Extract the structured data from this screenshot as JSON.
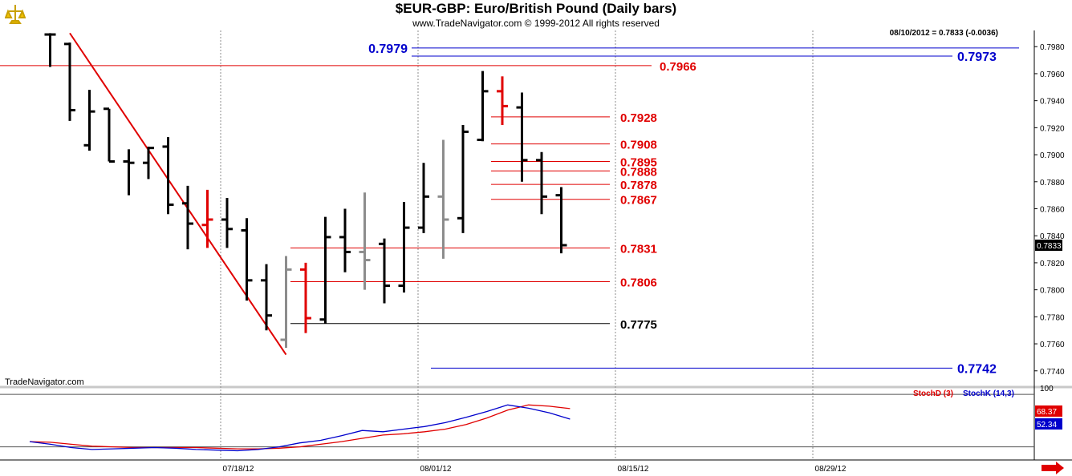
{
  "header": {
    "title": "$EUR-GBP:  Euro/British Pound  (Daily bars)",
    "subtitle": "www.TradeNavigator.com © 1999-2012 All rights reserved",
    "last_info": "08/10/2012 = 0.7833 (-0.0036)",
    "brand": "TradeNavigator.com"
  },
  "colors": {
    "bar_black": "#000000",
    "bar_red": "#e00000",
    "bar_gray": "#8c8c8c",
    "level_red": "#e00000",
    "level_blue": "#0000cc",
    "stoch_d": "#e00000",
    "stoch_k": "#0000cc",
    "grid": "#8c8c8c"
  },
  "chart_data": [
    {
      "type": "ohlc",
      "title": "$EUR-GBP:  Euro/British Pound  (Daily bars)",
      "ylim": [
        0.7728,
        0.7992
      ],
      "y_ticks": [
        "0.7740",
        "0.7760",
        "0.7780",
        "0.7800",
        "0.7820",
        "0.7840",
        "0.7860",
        "0.7880",
        "0.7900",
        "0.7920",
        "0.7940",
        "0.7960",
        "0.7980"
      ],
      "x_ticks": [
        "07/18/12",
        "08/01/12",
        "08/15/12",
        "08/29/12"
      ],
      "last_price": "0.7833",
      "bars": [
        {
          "o": 0.7989,
          "h": 0.799,
          "l": 0.7965,
          "c": 0.7989,
          "color": "black"
        },
        {
          "o": 0.7982,
          "h": 0.7983,
          "l": 0.7925,
          "c": 0.7933,
          "color": "black"
        },
        {
          "o": 0.7907,
          "h": 0.7948,
          "l": 0.7903,
          "c": 0.7932,
          "color": "black"
        },
        {
          "o": 0.7934,
          "h": 0.7934,
          "l": 0.7895,
          "c": 0.7895,
          "color": "black"
        },
        {
          "o": 0.7895,
          "h": 0.7904,
          "l": 0.787,
          "c": 0.7894,
          "color": "black"
        },
        {
          "o": 0.7894,
          "h": 0.7906,
          "l": 0.7882,
          "c": 0.7905,
          "color": "black"
        },
        {
          "o": 0.7906,
          "h": 0.7913,
          "l": 0.7856,
          "c": 0.7863,
          "color": "black"
        },
        {
          "o": 0.7864,
          "h": 0.7877,
          "l": 0.783,
          "c": 0.7849,
          "color": "black"
        },
        {
          "o": 0.7848,
          "h": 0.7874,
          "l": 0.7831,
          "c": 0.7852,
          "color": "red"
        },
        {
          "o": 0.7852,
          "h": 0.7868,
          "l": 0.7831,
          "c": 0.7845,
          "color": "black"
        },
        {
          "o": 0.7844,
          "h": 0.7853,
          "l": 0.7792,
          "c": 0.7807,
          "color": "black"
        },
        {
          "o": 0.7807,
          "h": 0.7819,
          "l": 0.777,
          "c": 0.7781,
          "color": "black"
        },
        {
          "o": 0.7763,
          "h": 0.7825,
          "l": 0.7757,
          "c": 0.7815,
          "color": "gray"
        },
        {
          "o": 0.7815,
          "h": 0.782,
          "l": 0.7768,
          "c": 0.7779,
          "color": "red"
        },
        {
          "o": 0.7778,
          "h": 0.7854,
          "l": 0.7775,
          "c": 0.7839,
          "color": "black"
        },
        {
          "o": 0.7839,
          "h": 0.786,
          "l": 0.7813,
          "c": 0.7828,
          "color": "black"
        },
        {
          "o": 0.7828,
          "h": 0.7872,
          "l": 0.78,
          "c": 0.7822,
          "color": "gray"
        },
        {
          "o": 0.7834,
          "h": 0.7838,
          "l": 0.779,
          "c": 0.7803,
          "color": "black"
        },
        {
          "o": 0.7803,
          "h": 0.7865,
          "l": 0.7798,
          "c": 0.7846,
          "color": "black"
        },
        {
          "o": 0.7846,
          "h": 0.7894,
          "l": 0.7842,
          "c": 0.7869,
          "color": "black"
        },
        {
          "o": 0.7869,
          "h": 0.7911,
          "l": 0.7823,
          "c": 0.7852,
          "color": "gray"
        },
        {
          "o": 0.7853,
          "h": 0.7922,
          "l": 0.7842,
          "c": 0.7917,
          "color": "black"
        },
        {
          "o": 0.7911,
          "h": 0.7962,
          "l": 0.791,
          "c": 0.7947,
          "color": "black"
        },
        {
          "o": 0.7947,
          "h": 0.7958,
          "l": 0.7922,
          "c": 0.7936,
          "color": "red"
        },
        {
          "o": 0.7935,
          "h": 0.7946,
          "l": 0.788,
          "c": 0.7896,
          "color": "black"
        },
        {
          "o": 0.7896,
          "h": 0.7902,
          "l": 0.7856,
          "c": 0.7869,
          "color": "black"
        },
        {
          "o": 0.787,
          "h": 0.7876,
          "l": 0.7827,
          "c": 0.7833,
          "color": "black"
        }
      ],
      "levels": [
        {
          "value": 0.7979,
          "label": "0.7979",
          "color": "blue",
          "side": "left"
        },
        {
          "value": 0.7973,
          "label": "0.7973",
          "color": "blue",
          "side": "right"
        },
        {
          "value": 0.7966,
          "label": "0.7966",
          "color": "red",
          "side": "mid"
        },
        {
          "value": 0.7928,
          "label": "0.7928",
          "color": "red",
          "side": "mid"
        },
        {
          "value": 0.7908,
          "label": "0.7908",
          "color": "red",
          "side": "mid"
        },
        {
          "value": 0.7895,
          "label": "0.7895",
          "color": "red",
          "side": "mid"
        },
        {
          "value": 0.7888,
          "label": "0.7888",
          "color": "red",
          "side": "mid"
        },
        {
          "value": 0.7878,
          "label": "0.7878",
          "color": "red",
          "side": "mid"
        },
        {
          "value": 0.7867,
          "label": "0.7867",
          "color": "red",
          "side": "mid"
        },
        {
          "value": 0.7831,
          "label": "0.7831",
          "color": "red",
          "side": "mid"
        },
        {
          "value": 0.7806,
          "label": "0.7806",
          "color": "red",
          "side": "mid"
        },
        {
          "value": 0.7775,
          "label": "0.7775",
          "color": "black",
          "side": "mid"
        },
        {
          "value": 0.7742,
          "label": "0.7742",
          "color": "blue",
          "side": "right"
        }
      ],
      "trendline": {
        "from_bar": 1,
        "from_value": 0.799,
        "to_bar": 12,
        "to_value": 0.7752
      }
    },
    {
      "type": "line",
      "title": "Stochastic",
      "ylim": [
        -10,
        100
      ],
      "y_ticks": [
        "100"
      ],
      "series": [
        {
          "name": "StochD (3)",
          "value_label": "68.37",
          "color": "red",
          "values": [
            18,
            17,
            14,
            11,
            10,
            9,
            9,
            9,
            9,
            8,
            7,
            7,
            8,
            10,
            14,
            18,
            23,
            28,
            30,
            33,
            37,
            44,
            54,
            66,
            74,
            72,
            68.37
          ]
        },
        {
          "name": "StochK (14,3)",
          "value_label": "52.34",
          "color": "blue",
          "values": [
            18,
            14,
            9,
            6,
            7,
            8,
            9,
            8,
            6,
            5,
            4,
            6,
            10,
            16,
            20,
            27,
            35,
            33,
            37,
            41,
            47,
            55,
            64,
            74,
            69,
            62,
            52.34
          ]
        }
      ]
    }
  ]
}
